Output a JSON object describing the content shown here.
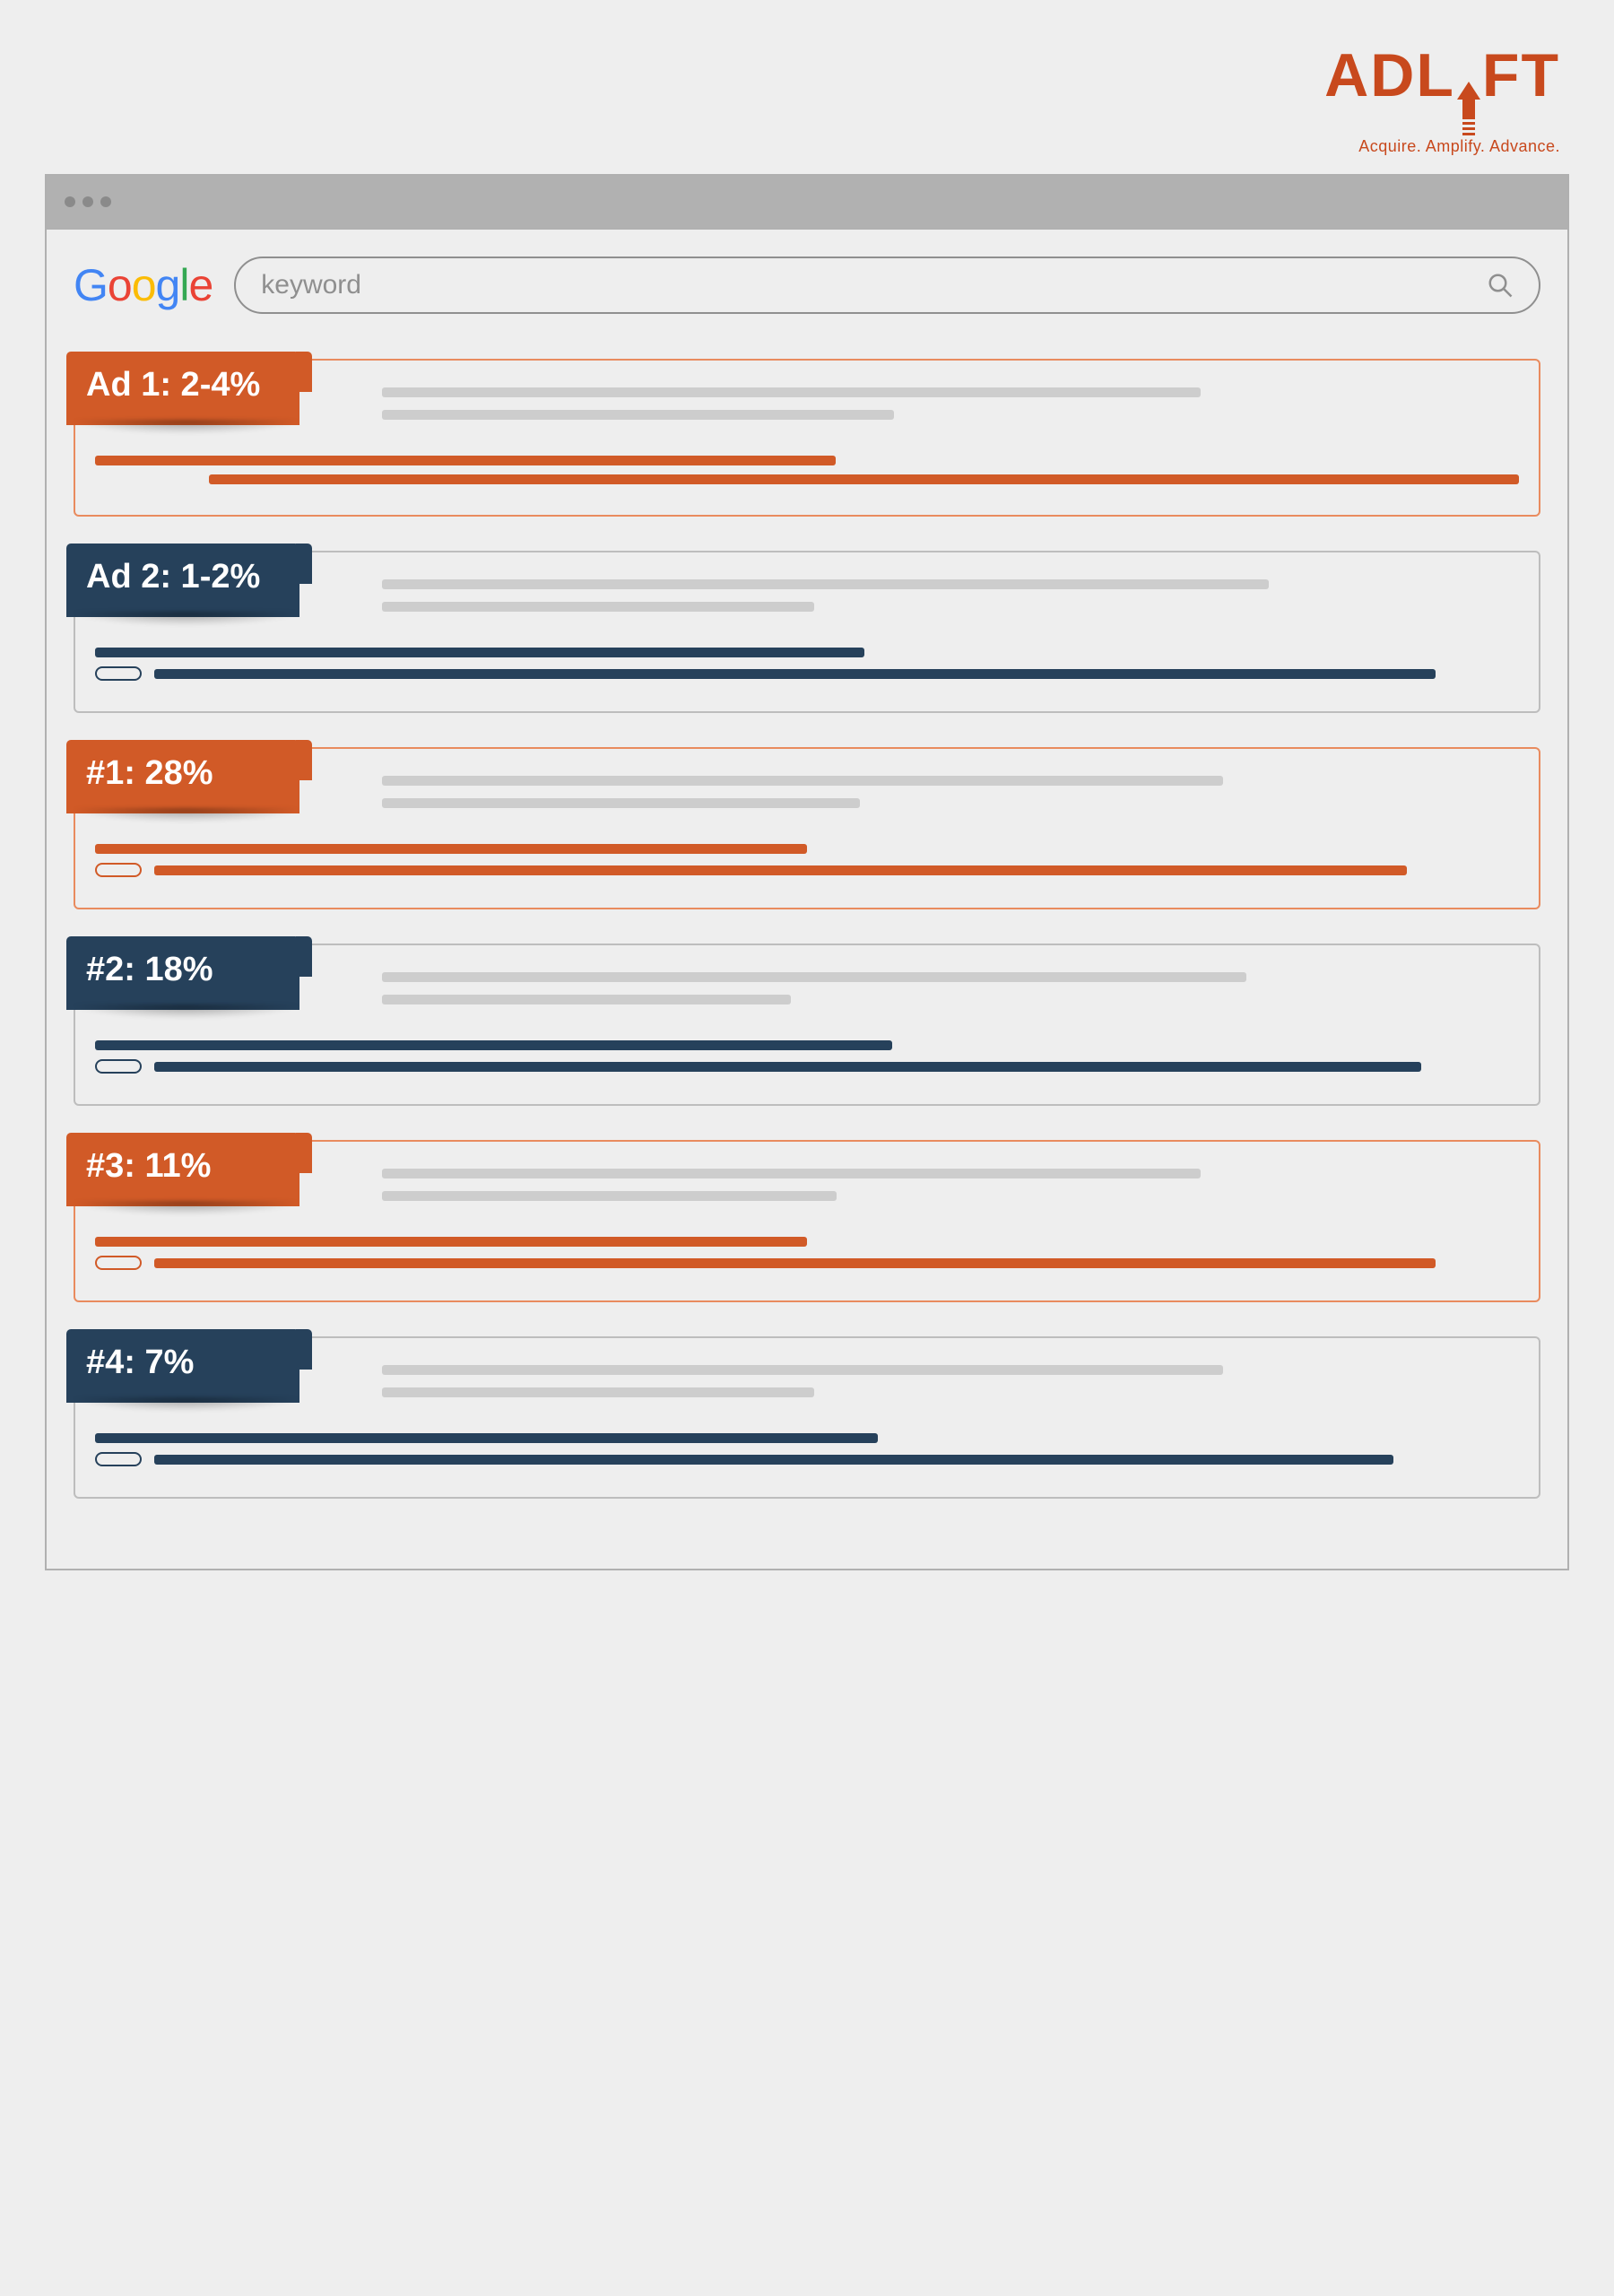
{
  "brand": {
    "name_left": "ADL",
    "name_right": "FT",
    "color": "#c8491d",
    "tagline": "Acquire. Amplify. Advance."
  },
  "browser": {
    "background": "#eeeeee",
    "bar_color": "#b1b1b1",
    "border_color": "#b0b0b0"
  },
  "google_logo": {
    "letters": [
      {
        "t": "G",
        "c": "#4285F4"
      },
      {
        "t": "o",
        "c": "#EA4335"
      },
      {
        "t": "o",
        "c": "#FBBC05"
      },
      {
        "t": "g",
        "c": "#4285F4"
      },
      {
        "t": "l",
        "c": "#34A853"
      },
      {
        "t": "e",
        "c": "#EA4335"
      }
    ]
  },
  "search": {
    "placeholder": "keyword"
  },
  "palette": {
    "orange": "#d15a27",
    "navy": "#26415b",
    "orange_border": "#e98b5e",
    "navy_border": "#9aa1a8",
    "grey_border": "#bdbdbd",
    "stub": "#cdcdcd"
  },
  "results": [
    {
      "label": "Ad 1: 2-4%",
      "tag_color": "orange",
      "border": "orange_border",
      "show_pill": false,
      "stub_widths_pct": [
        72,
        45
      ],
      "bar1_pct": 52,
      "bar2_pct": 92,
      "bar2_offset_pct": 8
    },
    {
      "label": "Ad 2: 1-2%",
      "tag_color": "navy",
      "border": "grey_border",
      "show_pill": true,
      "stub_widths_pct": [
        78,
        38
      ],
      "bar1_pct": 54,
      "bar2_pct": 90,
      "bar2_offset_pct": 0
    },
    {
      "label": "#1: 28%",
      "tag_color": "orange",
      "border": "orange_border",
      "show_pill": true,
      "stub_widths_pct": [
        74,
        42
      ],
      "bar1_pct": 50,
      "bar2_pct": 88,
      "bar2_offset_pct": 0
    },
    {
      "label": "#2: 18%",
      "tag_color": "navy",
      "border": "grey_border",
      "show_pill": true,
      "stub_widths_pct": [
        76,
        36
      ],
      "bar1_pct": 56,
      "bar2_pct": 89,
      "bar2_offset_pct": 0
    },
    {
      "label": "#3: 11%",
      "tag_color": "orange",
      "border": "orange_border",
      "show_pill": true,
      "stub_widths_pct": [
        72,
        40
      ],
      "bar1_pct": 50,
      "bar2_pct": 90,
      "bar2_offset_pct": 0
    },
    {
      "label": "#4: 7%",
      "tag_color": "navy",
      "border": "grey_border",
      "show_pill": true,
      "stub_widths_pct": [
        74,
        38
      ],
      "bar1_pct": 55,
      "bar2_pct": 87,
      "bar2_offset_pct": 0
    }
  ]
}
